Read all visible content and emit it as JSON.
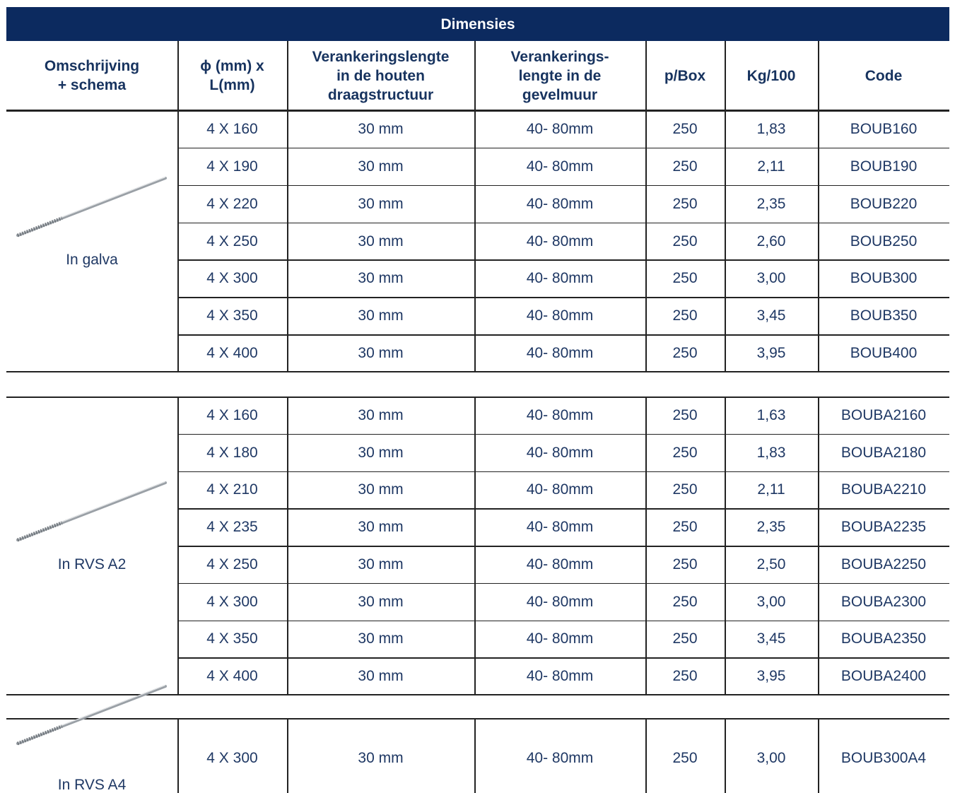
{
  "table": {
    "title": "Dimensies",
    "columns": [
      "Omschrijving\n+ schema",
      "ϕ (mm) x\nL(mm)",
      "Verankeringslengte\nin de houten\ndraagstructuur",
      "Verankerings-\nlengte in de\ngevelmuur",
      "p/Box",
      "Kg/100",
      "Code"
    ],
    "groups": [
      {
        "label": "In galva",
        "rows": [
          [
            "4 X 160",
            "30 mm",
            "40- 80mm",
            "250",
            "1,83",
            "BOUB160"
          ],
          [
            "4 X 190",
            "30 mm",
            "40- 80mm",
            "250",
            "2,11",
            "BOUB190"
          ],
          [
            "4 X 220",
            "30 mm",
            "40- 80mm",
            "250",
            "2,35",
            "BOUB220"
          ],
          [
            "4 X 250",
            "30 mm",
            "40- 80mm",
            "250",
            "2,60",
            "BOUB250"
          ],
          [
            "4 X 300",
            "30 mm",
            "40- 80mm",
            "250",
            "3,00",
            "BOUB300"
          ],
          [
            "4 X 350",
            "30 mm",
            "40- 80mm",
            "250",
            "3,45",
            "BOUB350"
          ],
          [
            "4 X 400",
            "30 mm",
            "40- 80mm",
            "250",
            "3,95",
            "BOUB400"
          ]
        ]
      },
      {
        "label": "In RVS A2",
        "rows": [
          [
            "4 X 160",
            "30 mm",
            "40- 80mm",
            "250",
            "1,63",
            "BOUBA2160"
          ],
          [
            "4 X 180",
            "30 mm",
            "40- 80mm",
            "250",
            "1,83",
            "BOUBA2180"
          ],
          [
            "4 X 210",
            "30 mm",
            "40- 80mm",
            "250",
            "2,11",
            "BOUBA2210"
          ],
          [
            "4 X 235",
            "30 mm",
            "40- 80mm",
            "250",
            "2,35",
            "BOUBA2235"
          ],
          [
            "4 X 250",
            "30 mm",
            "40- 80mm",
            "250",
            "2,50",
            "BOUBA2250"
          ],
          [
            "4 X 300",
            "30 mm",
            "40- 80mm",
            "250",
            "3,00",
            "BOUBA2300"
          ],
          [
            "4 X 350",
            "30 mm",
            "40- 80mm",
            "250",
            "3,45",
            "BOUBA2350"
          ],
          [
            "4 X 400",
            "30 mm",
            "40- 80mm",
            "250",
            "3,95",
            "BOUBA2400"
          ]
        ]
      },
      {
        "label": "In RVS A4",
        "rows": [
          [
            "4 X 300",
            "30 mm",
            "40- 80mm",
            "250",
            "3,00",
            "BOUB300A4"
          ]
        ]
      }
    ]
  }
}
